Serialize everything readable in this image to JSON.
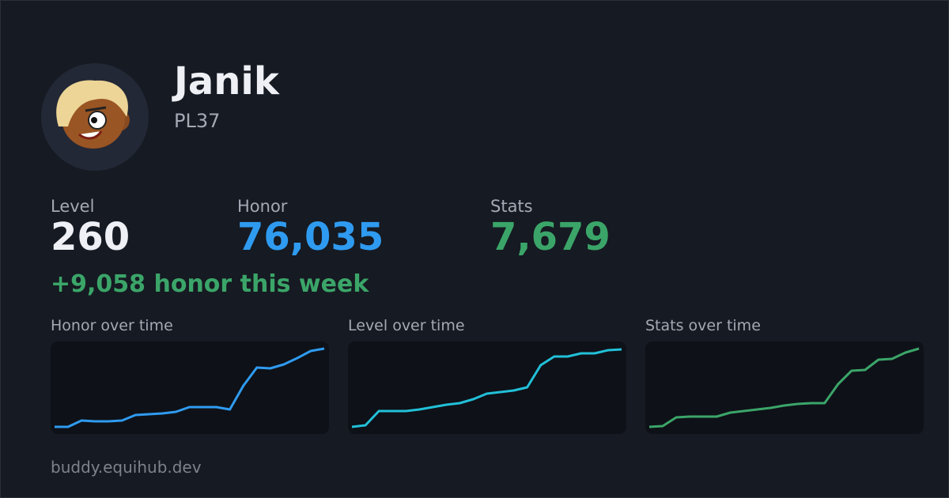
{
  "profile": {
    "name": "Janik",
    "tag": "PL37"
  },
  "stats": [
    {
      "label": "Level",
      "value": "260",
      "color": "#eef0f5"
    },
    {
      "label": "Honor",
      "value": "76,035",
      "color": "#2f9bf0"
    },
    {
      "label": "Stats",
      "value": "7,679",
      "color": "#3ba569"
    }
  ],
  "weekly": "+9,058 honor this week",
  "sparklines": [
    {
      "title": "Honor over time",
      "color": "#2f9bf0",
      "ylim": [
        0,
        100
      ],
      "values": [
        0,
        0,
        8,
        7,
        7,
        8,
        15,
        16,
        17,
        19,
        25,
        25,
        25,
        22,
        52,
        75,
        74,
        79,
        87,
        96,
        99
      ]
    },
    {
      "title": "Level over time",
      "color": "#22c0d8",
      "ylim": [
        0,
        100
      ],
      "values": [
        0,
        2,
        20,
        20,
        20,
        22,
        25,
        28,
        30,
        35,
        42,
        44,
        46,
        50,
        78,
        89,
        89,
        93,
        93,
        97,
        98
      ]
    },
    {
      "title": "Stats over time",
      "color": "#3ba569",
      "ylim": [
        0,
        100
      ],
      "values": [
        0,
        1,
        12,
        13,
        13,
        13,
        18,
        20,
        22,
        24,
        27,
        29,
        30,
        30,
        54,
        71,
        72,
        85,
        86,
        94,
        99
      ]
    }
  ],
  "footer": "buddy.equihub.dev"
}
